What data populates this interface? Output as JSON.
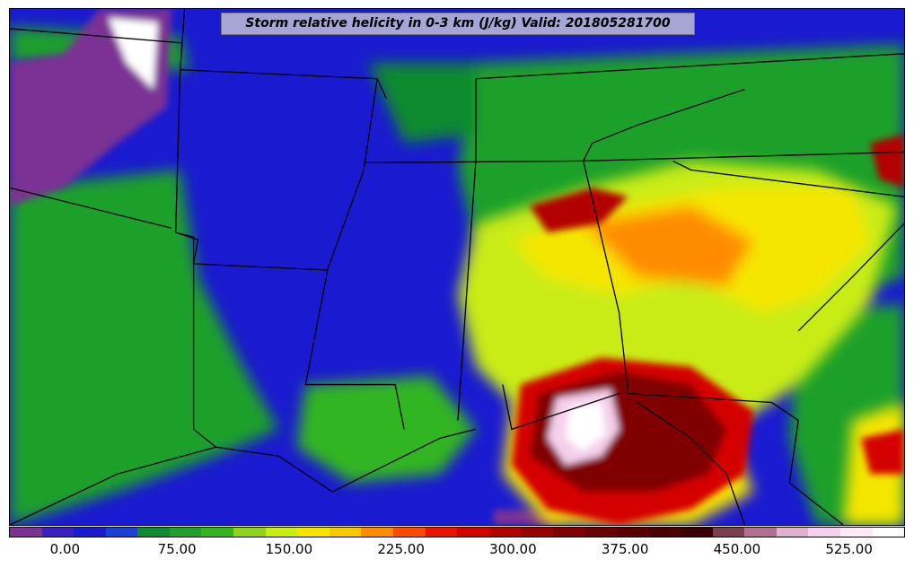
{
  "title": "Storm relative helicity in 0-3 km (J/kg) Valid: 201805281700",
  "colorbar": {
    "colors": [
      "#7b3294",
      "#3a1fc4",
      "#1a1ad0",
      "#1c3fd6",
      "#0f8a2e",
      "#1fa02a",
      "#33b521",
      "#8fd31a",
      "#c9ec12",
      "#f5e600",
      "#f5c800",
      "#ff8c00",
      "#ff4a00",
      "#ee1100",
      "#d40000",
      "#b20000",
      "#990000",
      "#800000",
      "#6a0000",
      "#5a0000",
      "#4a0000",
      "#3a0000",
      "#7a4050",
      "#b07090",
      "#e0b0d0",
      "#f5d0ec",
      "#ffe8f8",
      "#ffffff"
    ],
    "tick_labels": [
      "0.00",
      "75.00",
      "150.00",
      "225.00",
      "300.00",
      "375.00",
      "450.00",
      "525.00"
    ],
    "tick_values": [
      0,
      75,
      150,
      225,
      300,
      375,
      450,
      525
    ],
    "min": -37.5,
    "max": 562.5
  }
}
